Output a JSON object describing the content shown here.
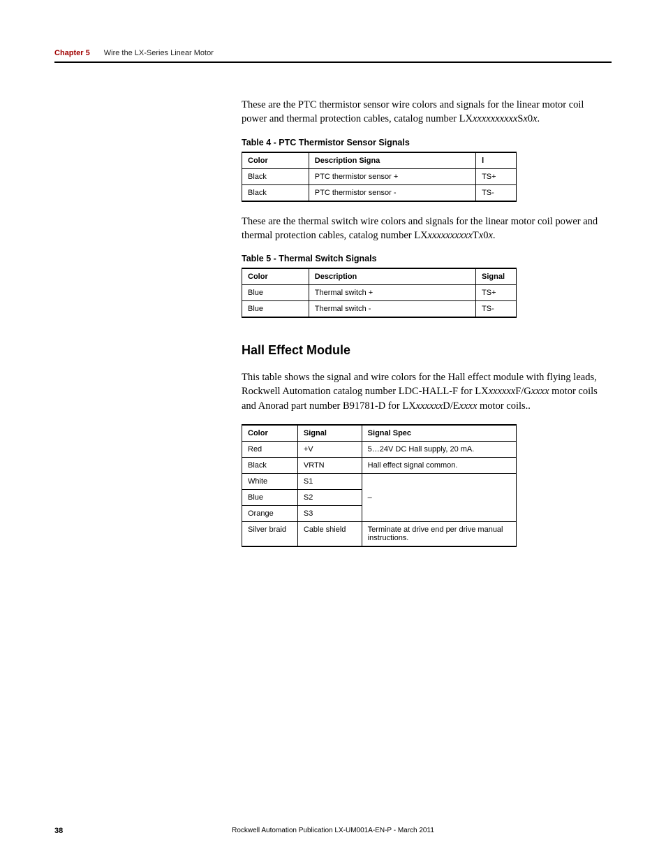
{
  "header": {
    "chapter_label": "Chapter 5",
    "chapter_title": "Wire the LX-Series Linear Motor"
  },
  "intro_para_1_prefix": "These are the PTC thermistor sensor wire colors and signals for the linear motor coil power and thermal protection cables, catalog number LX",
  "intro_para_1_italic": "xxxxxxxxxx",
  "intro_para_1_mid": "S",
  "intro_para_1_italic2": "x",
  "intro_para_1_mid2": "0",
  "intro_para_1_italic3": "x",
  "intro_para_1_suffix": ".",
  "table4": {
    "title": "Table 4 - PTC Thermistor Sensor Signals",
    "headers": [
      "Color",
      "Description Signa",
      "l"
    ],
    "rows": [
      [
        "Black",
        "PTC thermistor sensor +",
        "TS+"
      ],
      [
        "Black",
        "PTC thermistor sensor -",
        "TS-"
      ]
    ]
  },
  "intro_para_2_prefix": "These are the thermal switch wire colors and signals for the linear motor coil power and thermal protection cables, catalog number LX",
  "intro_para_2_italic": "xxxxxxxxxx",
  "intro_para_2_mid": "T",
  "intro_para_2_italic2": "x",
  "intro_para_2_mid2": "0",
  "intro_para_2_italic3": "x",
  "intro_para_2_suffix": ".",
  "table5": {
    "title": "Table 5 - Thermal Switch Signals",
    "headers": [
      "Color",
      "Description",
      "Signal"
    ],
    "rows": [
      [
        "Blue",
        "Thermal switch +",
        "TS+"
      ],
      [
        "Blue",
        "Thermal switch -",
        "TS-"
      ]
    ]
  },
  "hall": {
    "heading": "Hall Effect Module",
    "para_prefix": "This table shows the signal and wire colors for the Hall effect module with flying leads, Rockwell Automation catalog number LDC-HALL-F for LX",
    "para_i1": "xxxxxx",
    "para_m1": "F/G",
    "para_i2": "xxxx",
    "para_m2": " motor coils and Anorad part number B91781-D for LX",
    "para_i3": "xxxxxx",
    "para_m3": "D/E",
    "para_i4": "xxxx",
    "para_suffix": " motor coils..",
    "headers": [
      "Color",
      "Signal",
      "Signal Spec"
    ],
    "rows": [
      [
        "Red",
        "+V",
        "5…24V DC Hall supply, 20 mA."
      ],
      [
        "Black",
        "VRTN",
        "Hall effect signal common."
      ],
      [
        "White",
        "S1",
        ""
      ],
      [
        "Blue",
        "S2",
        "–"
      ],
      [
        "Orange",
        "S3",
        ""
      ],
      [
        "Silver braid",
        "Cable shield",
        "Terminate at drive end per drive manual instructions."
      ]
    ]
  },
  "footer": {
    "page_number": "38",
    "pub_text": "Rockwell Automation Publication LX-UM001A-EN-P - March 2011"
  }
}
